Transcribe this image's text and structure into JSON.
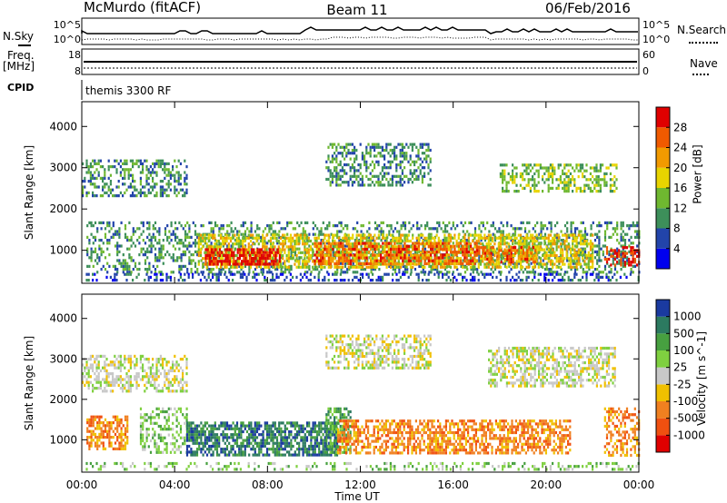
{
  "header": {
    "station": "McMurdo (fitACF)",
    "beam": "Beam 11",
    "date": "06/Feb/2016"
  },
  "meta_panels": {
    "nsky_label": "N.Sky",
    "nsky_ticks": [
      "10^5",
      "10^0"
    ],
    "nsearch_label": "N.Search",
    "nsearch_ticks": [
      "10^5",
      "10^0"
    ],
    "freq_label": "Freq.",
    "freq_unit": "[MHz]",
    "freq_ticks": [
      "18",
      "8"
    ],
    "nave_label": "Nave",
    "nave_ticks": [
      "60",
      "0"
    ],
    "cpid_label": "CPID",
    "cpid_value": "themis 3300 RF"
  },
  "colors": {
    "power_scale": [
      "#0000ee",
      "#2244aa",
      "#3d8f5a",
      "#6fb830",
      "#e8d400",
      "#f29a00",
      "#f05a00",
      "#e00000"
    ],
    "velocity_scale": [
      "#1a3aa0",
      "#2c7a60",
      "#47a040",
      "#7fd040",
      "#c8c8c8",
      "#f0c000",
      "#f08020",
      "#f05010",
      "#e00000"
    ]
  },
  "chart_data": [
    {
      "type": "heatmap",
      "title": "Power",
      "ylabel": "Slant Range [km]",
      "xlabel": "Time UT",
      "x_ticks": [
        "00:00",
        "04:00",
        "08:00",
        "12:00",
        "16:00",
        "20:00",
        "00:00"
      ],
      "y_ticks": [
        1000,
        2000,
        3000,
        4000
      ],
      "ylim": [
        200,
        4600
      ],
      "xlim_hours": [
        0,
        24
      ],
      "colorbar": {
        "label": "Power [dB]",
        "ticks": [
          "4",
          "8",
          "12",
          "16",
          "20",
          "24",
          "28"
        ]
      },
      "regions": [
        {
          "t0": 0.2,
          "t1": 24.0,
          "r0": 500,
          "r1": 1700,
          "level": 2,
          "density": 0.35
        },
        {
          "t0": 5.0,
          "t1": 22.0,
          "r0": 600,
          "r1": 1400,
          "level": 4,
          "density": 0.6
        },
        {
          "t0": 5.3,
          "t1": 8.5,
          "r0": 650,
          "r1": 1050,
          "level": 7,
          "density": 0.75
        },
        {
          "t0": 10.0,
          "t1": 17.0,
          "r0": 700,
          "r1": 1200,
          "level": 6,
          "density": 0.55
        },
        {
          "t0": 17.0,
          "t1": 19.5,
          "r0": 700,
          "r1": 1100,
          "level": 6,
          "density": 0.45
        },
        {
          "t0": 22.5,
          "t1": 24.0,
          "r0": 650,
          "r1": 1100,
          "level": 7,
          "density": 0.5
        },
        {
          "t0": 0.0,
          "t1": 4.5,
          "r0": 2300,
          "r1": 3200,
          "level": 2,
          "density": 0.45
        },
        {
          "t0": 10.5,
          "t1": 15.0,
          "r0": 2600,
          "r1": 3600,
          "level": 2,
          "density": 0.45
        },
        {
          "t0": 18.0,
          "t1": 23.0,
          "r0": 2400,
          "r1": 3100,
          "level": 3,
          "density": 0.45
        },
        {
          "t0": 0.0,
          "t1": 24.0,
          "r0": 250,
          "r1": 450,
          "level": 1,
          "density": 0.3
        }
      ]
    },
    {
      "type": "heatmap",
      "title": "Velocity",
      "ylabel": "Slant Range [km]",
      "xlabel": "Time UT",
      "x_ticks": [
        "00:00",
        "04:00",
        "08:00",
        "12:00",
        "16:00",
        "20:00",
        "00:00"
      ],
      "y_ticks": [
        1000,
        2000,
        3000,
        4000
      ],
      "ylim": [
        200,
        4600
      ],
      "xlim_hours": [
        0,
        24
      ],
      "colorbar": {
        "label": "Velocity [m s^-1]",
        "ticks": [
          "1000",
          "500",
          "100",
          "25",
          "-25",
          "-100",
          "-500",
          "-1000"
        ]
      },
      "regions": [
        {
          "t0": 0.2,
          "t1": 2.0,
          "r0": 800,
          "r1": 1600,
          "level": 6,
          "density": 0.6
        },
        {
          "t0": 2.5,
          "t1": 4.5,
          "r0": 700,
          "r1": 1800,
          "level": 3,
          "density": 0.4
        },
        {
          "t0": 4.5,
          "t1": 11.0,
          "r0": 650,
          "r1": 1450,
          "level": 1,
          "density": 0.7
        },
        {
          "t0": 10.5,
          "t1": 11.6,
          "r0": 700,
          "r1": 1800,
          "level": 2,
          "density": 0.6
        },
        {
          "t0": 11.0,
          "t1": 21.0,
          "r0": 650,
          "r1": 1500,
          "level": 6,
          "density": 0.6
        },
        {
          "t0": 22.5,
          "t1": 24.0,
          "r0": 600,
          "r1": 1800,
          "level": 6,
          "density": 0.45
        },
        {
          "t0": 0.0,
          "t1": 4.5,
          "r0": 2200,
          "r1": 3100,
          "level": 4,
          "density": 0.5
        },
        {
          "t0": 10.5,
          "t1": 15.0,
          "r0": 2800,
          "r1": 3600,
          "level": 4,
          "density": 0.5
        },
        {
          "t0": 17.5,
          "t1": 23.0,
          "r0": 2300,
          "r1": 3300,
          "level": 4,
          "density": 0.55
        },
        {
          "t0": 0.0,
          "t1": 24.0,
          "r0": 250,
          "r1": 450,
          "level": 3,
          "density": 0.25
        }
      ]
    }
  ]
}
